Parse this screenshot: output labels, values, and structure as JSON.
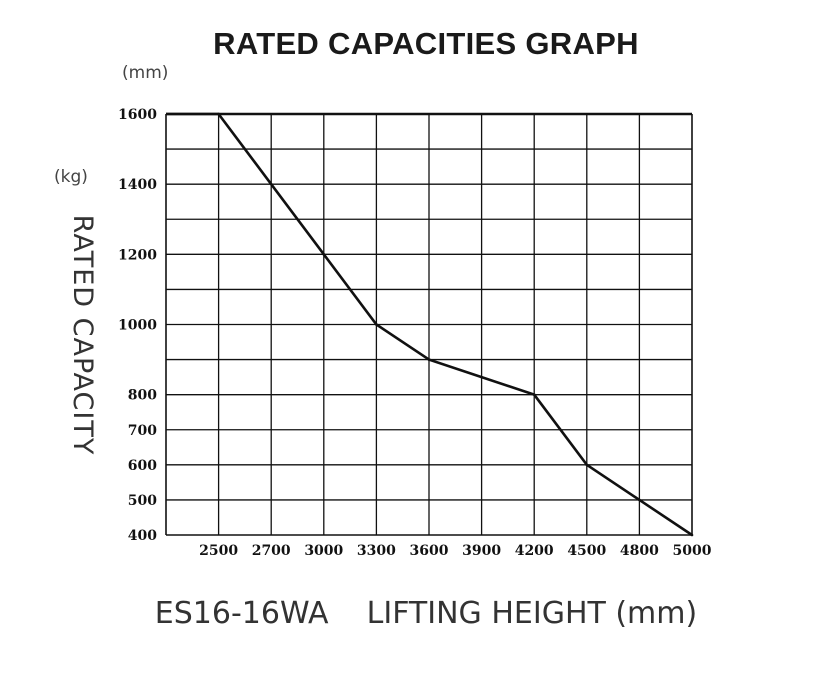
{
  "chart_data": {
    "type": "line",
    "title": "RATED CAPACITIES GRAPH",
    "x_unit_label": "(mm)",
    "y_unit_label": "(kg)",
    "ylabel": "RATED  CAPACITY",
    "xlabel": "ES16-16WA    LIFTING HEIGHT (mm)",
    "x_ticks": [
      "2500",
      "2700",
      "3000",
      "3300",
      "3600",
      "3900",
      "4200",
      "4500",
      "4800",
      "5000"
    ],
    "y_ticks": [
      "1600",
      "1400",
      "1200",
      "1000",
      "800",
      "700",
      "600",
      "500",
      "400"
    ],
    "grid": true,
    "series": [
      {
        "x": [
          "2500",
          "2700",
          "3000",
          "3300",
          "3600",
          "3900",
          "4200",
          "4500",
          "4800",
          "5000"
        ],
        "values": [
          1600,
          1400,
          1200,
          1000,
          900,
          850,
          800,
          600,
          500,
          400
        ]
      }
    ]
  }
}
